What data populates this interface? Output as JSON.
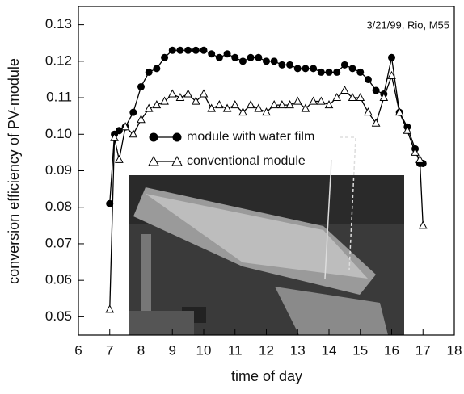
{
  "chart_data": {
    "type": "line",
    "annotation": "3/21/99, Rio, M55",
    "x_label": "time of day",
    "y_label": "conversion efficiency of PV-module",
    "x": [
      7.0,
      7.15,
      7.3,
      7.5,
      7.75,
      8.0,
      8.25,
      8.5,
      8.75,
      9.0,
      9.25,
      9.5,
      9.75,
      10.0,
      10.25,
      10.5,
      10.75,
      11.0,
      11.25,
      11.5,
      11.75,
      12.0,
      12.25,
      12.5,
      12.75,
      13.0,
      13.25,
      13.5,
      13.75,
      14.0,
      14.25,
      14.5,
      14.75,
      15.0,
      15.25,
      15.5,
      15.75,
      16.0,
      16.25,
      16.5,
      16.75,
      16.9,
      17.0
    ],
    "series": [
      {
        "name": "module with water film",
        "color": "#000000",
        "marker": "circle",
        "values": [
          0.081,
          0.1,
          0.101,
          0.102,
          0.106,
          0.113,
          0.117,
          0.118,
          0.121,
          0.123,
          0.123,
          0.123,
          0.123,
          0.123,
          0.122,
          0.121,
          0.122,
          0.121,
          0.12,
          0.121,
          0.121,
          0.12,
          0.12,
          0.119,
          0.119,
          0.118,
          0.118,
          0.118,
          0.117,
          0.117,
          0.117,
          0.119,
          0.118,
          0.117,
          0.115,
          0.112,
          0.111,
          0.121,
          0.106,
          0.102,
          0.096,
          0.092,
          0.092
        ]
      },
      {
        "name": "conventional module",
        "color": "#000000",
        "marker": "triangle",
        "values": [
          0.052,
          0.099,
          0.093,
          0.102,
          0.1,
          0.104,
          0.107,
          0.108,
          0.109,
          0.111,
          0.11,
          0.111,
          0.109,
          0.111,
          0.107,
          0.108,
          0.107,
          0.108,
          0.106,
          0.108,
          0.107,
          0.106,
          0.108,
          0.108,
          0.108,
          0.109,
          0.107,
          0.109,
          0.109,
          0.108,
          0.11,
          0.112,
          0.11,
          0.11,
          0.106,
          0.103,
          0.11,
          0.116,
          0.106,
          0.101,
          0.095,
          0.093,
          0.075
        ]
      }
    ],
    "xlim": [
      6,
      18
    ],
    "xticks": [
      6,
      7,
      8,
      9,
      10,
      11,
      12,
      13,
      14,
      15,
      16,
      17,
      18
    ],
    "ylim": [
      0.045,
      0.135
    ],
    "yticks": [
      0.05,
      0.06,
      0.07,
      0.08,
      0.09,
      {
        "value": 0.1,
        "label": "0.10"
      },
      0.11,
      0.12,
      0.13
    ]
  }
}
